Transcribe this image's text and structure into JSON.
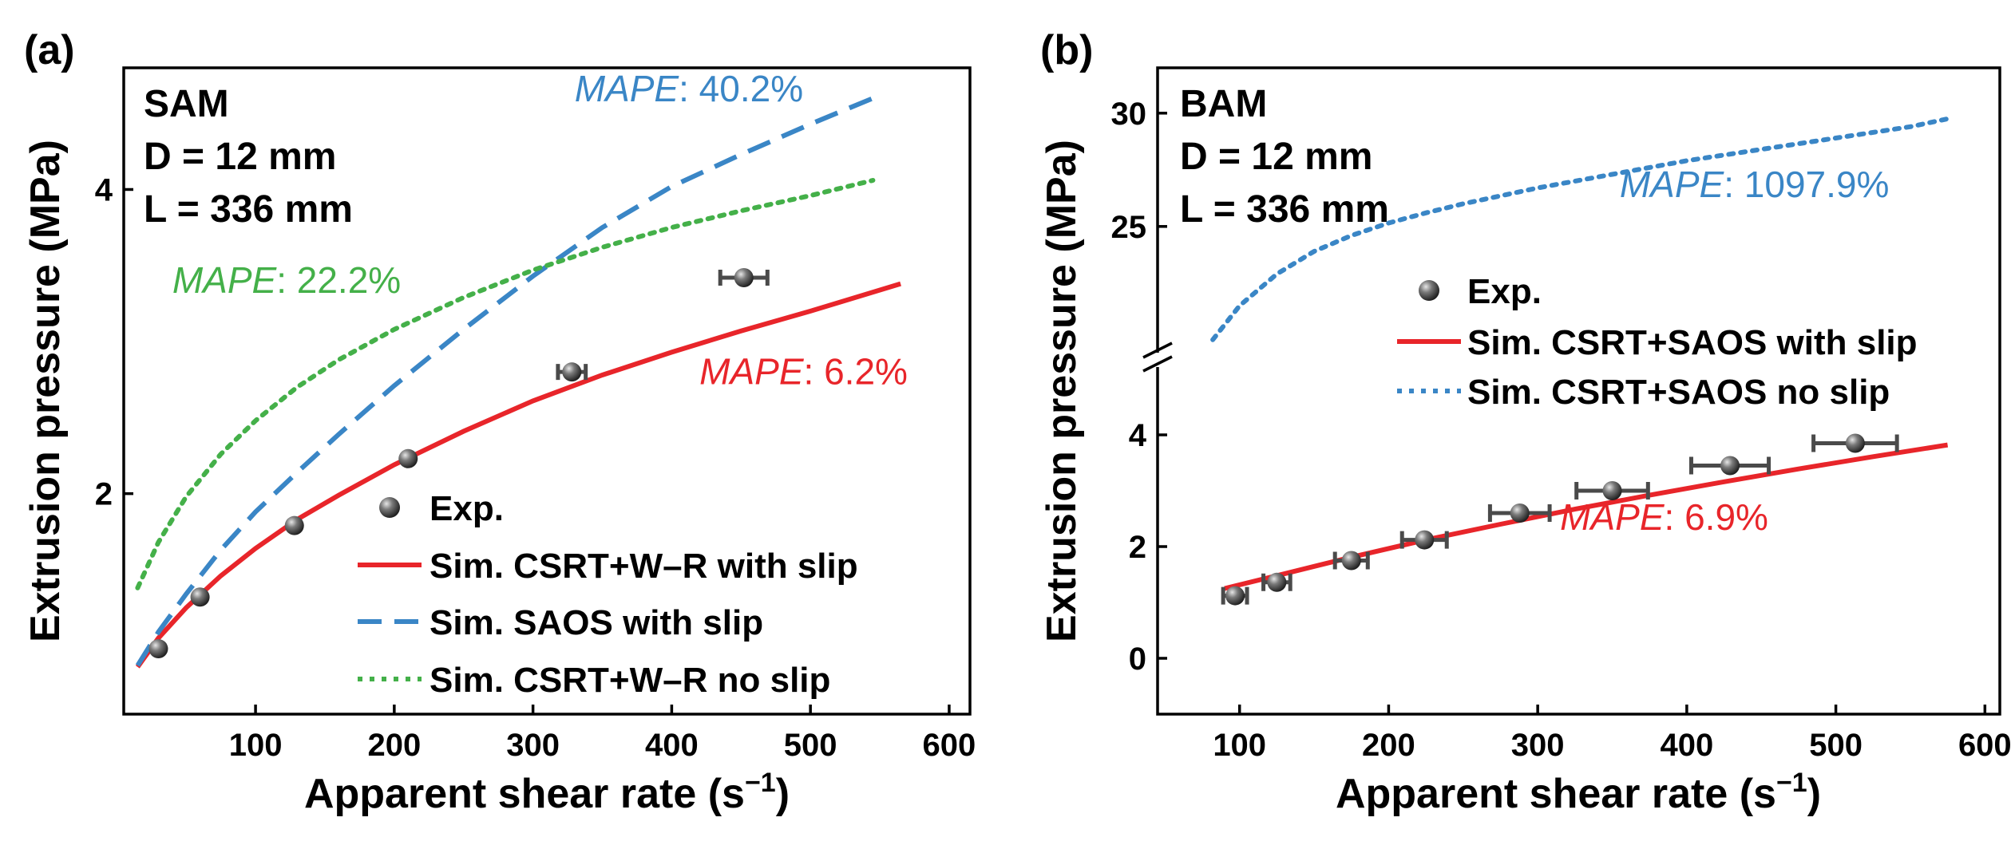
{
  "chart_data": [
    {
      "panel_label": "(a)",
      "type": "line",
      "xlabel": "Apparent shear rate (s",
      "xlabel_sup": "−1",
      "xlabel_end": ")",
      "ylabel": "Extrusion pressure (MPa)",
      "xlim": [
        5,
        615
      ],
      "ylim": [
        0.55,
        4.8
      ],
      "xticks": [
        100,
        200,
        300,
        400,
        500,
        600
      ],
      "xtick_labels": [
        "100",
        "200",
        "300",
        "400",
        "500",
        "600"
      ],
      "yticks": [
        2,
        4
      ],
      "ytick_labels": [
        "2",
        "4"
      ],
      "info": [
        "SAM",
        "D = 12 mm",
        "L = 336 mm"
      ],
      "legend": [
        "Exp.",
        "Sim. CSRT+W–R with slip",
        "Sim. SAOS with slip",
        "Sim. CSRT+W–R no slip"
      ],
      "experimental": {
        "name": "Exp.",
        "x": [
          30,
          60,
          128,
          210,
          328,
          452
        ],
        "y": [
          0.98,
          1.32,
          1.79,
          2.23,
          2.8,
          3.42
        ],
        "xerr": [
          0,
          0,
          0,
          0,
          10,
          17
        ]
      },
      "series": [
        {
          "name": "Sim. CSRT+W–R with slip",
          "style": "solid",
          "color": "#e8252a",
          "x": [
            15,
            30,
            50,
            75,
            100,
            130,
            160,
            200,
            250,
            300,
            350,
            400,
            450,
            500,
            565
          ],
          "y": [
            0.86,
            1.05,
            1.25,
            1.46,
            1.64,
            1.83,
            1.99,
            2.19,
            2.41,
            2.61,
            2.78,
            2.93,
            3.07,
            3.2,
            3.38
          ]
        },
        {
          "name": "Sim. SAOS with slip",
          "style": "dashed",
          "color": "#3a86c6",
          "x": [
            15,
            30,
            50,
            75,
            100,
            130,
            160,
            200,
            250,
            300,
            350,
            400,
            450,
            500,
            545
          ],
          "y": [
            0.87,
            1.09,
            1.34,
            1.63,
            1.88,
            2.14,
            2.39,
            2.71,
            3.08,
            3.43,
            3.75,
            4.02,
            4.23,
            4.43,
            4.6
          ]
        },
        {
          "name": "Sim. CSRT+W–R no slip",
          "style": "dotted",
          "color": "#44b049",
          "x": [
            15,
            30,
            50,
            75,
            100,
            130,
            160,
            200,
            250,
            300,
            350,
            400,
            450,
            500,
            545
          ],
          "y": [
            1.38,
            1.68,
            1.98,
            2.26,
            2.48,
            2.7,
            2.88,
            3.08,
            3.29,
            3.47,
            3.62,
            3.75,
            3.86,
            3.96,
            4.06
          ]
        }
      ],
      "annotations": [
        {
          "label": "MAPE",
          "value": ": 40.2%",
          "color": "#3a86c6",
          "x": 330,
          "y": 4.58
        },
        {
          "label": "MAPE",
          "value": ": 22.2%",
          "color": "#44b049",
          "x": 40,
          "y": 3.32
        },
        {
          "label": "MAPE",
          "value": ": 6.2%",
          "color": "#e8252a",
          "x": 420,
          "y": 2.72
        }
      ]
    },
    {
      "panel_label": "(b)",
      "type": "line",
      "broken_axis": true,
      "xlabel": "Apparent shear rate (s",
      "xlabel_sup": "−1",
      "xlabel_end": ")",
      "ylabel": "Extrusion pressure (MPa)",
      "xlim": [
        45,
        610
      ],
      "ylim_lower": [
        -1,
        5
      ],
      "ylim_upper": [
        19.5,
        32
      ],
      "xticks": [
        100,
        200,
        300,
        400,
        500,
        600
      ],
      "xtick_labels": [
        "100",
        "200",
        "300",
        "400",
        "500",
        "600"
      ],
      "yticks_lower": [
        0,
        2,
        4
      ],
      "ytick_labels_lower": [
        "0",
        "2",
        "4"
      ],
      "yticks_upper": [
        25,
        30
      ],
      "ytick_labels_upper": [
        "25",
        "30"
      ],
      "info": [
        "BAM",
        "D = 12 mm",
        "L = 336 mm"
      ],
      "legend": [
        "Exp.",
        "Sim. CSRT+SAOS with slip",
        "Sim. CSRT+SAOS no slip"
      ],
      "experimental": {
        "name": "Exp.",
        "x": [
          97,
          125,
          175,
          224,
          288,
          350,
          429,
          513
        ],
        "y": [
          1.12,
          1.36,
          1.75,
          2.12,
          2.6,
          3.0,
          3.45,
          3.85
        ],
        "xerr": [
          8,
          9,
          11,
          15,
          20,
          24,
          26,
          28
        ]
      },
      "series": [
        {
          "name": "Sim. CSRT+SAOS with slip",
          "style": "solid",
          "color": "#e8252a",
          "x": [
            90,
            125,
            175,
            225,
            275,
            325,
            375,
            425,
            475,
            525,
            575
          ],
          "y": [
            1.25,
            1.48,
            1.81,
            2.12,
            2.4,
            2.67,
            2.92,
            3.16,
            3.39,
            3.61,
            3.82
          ]
        },
        {
          "name": "Sim. CSRT+SAOS no slip",
          "style": "dotted",
          "color": "#3a86c6",
          "x": [
            82,
            100,
            125,
            150,
            175,
            200,
            225,
            250,
            300,
            350,
            400,
            450,
            500,
            550,
            575
          ],
          "y": [
            20.0,
            21.5,
            22.9,
            23.9,
            24.6,
            25.15,
            25.6,
            26.0,
            26.7,
            27.3,
            27.9,
            28.4,
            28.9,
            29.4,
            29.75
          ]
        }
      ],
      "annotations": [
        {
          "label": "MAPE",
          "value": ": 1097.9%",
          "color": "#3a86c6",
          "x": 355,
          "y": 26.3,
          "axis": "upper"
        },
        {
          "label": "MAPE",
          "value": ": 6.9%",
          "color": "#e8252a",
          "x": 315,
          "y": 2.3,
          "axis": "lower"
        }
      ]
    }
  ]
}
